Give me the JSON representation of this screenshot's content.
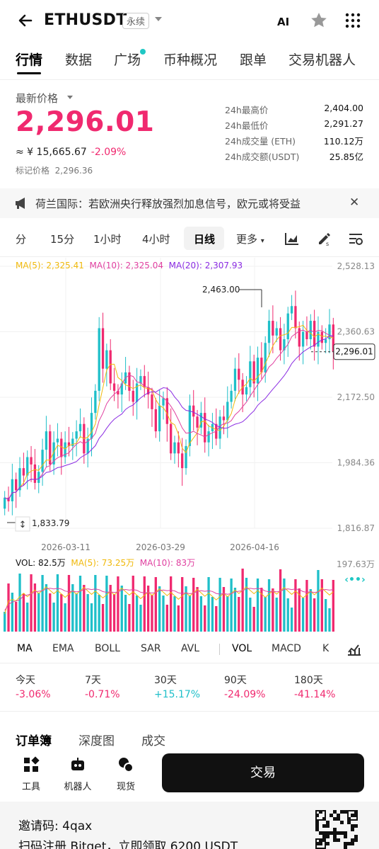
{
  "header": {
    "symbol": "ETHUSDT",
    "contract_type": "永续",
    "ai_label": "AI"
  },
  "tabs": [
    {
      "label": "行情",
      "active": true
    },
    {
      "label": "数据"
    },
    {
      "label": "广场",
      "dot": true
    },
    {
      "label": "币种概况"
    },
    {
      "label": "跟单"
    },
    {
      "label": "交易机器人"
    }
  ],
  "price": {
    "label": "最新价格",
    "last": "2,296.01",
    "cny": "≈ ¥ 15,665.67",
    "change": "-2.09%",
    "mark_label": "标记价格",
    "mark_value": "2,296.36"
  },
  "stats": [
    {
      "label": "24h最高价",
      "value": "2,404.00"
    },
    {
      "label": "24h最低价",
      "value": "2,291.27"
    },
    {
      "label": "24h成交量 (ETH)",
      "value": "110.12万"
    },
    {
      "label": "24h成交额(USDT)",
      "value": "25.85亿"
    }
  ],
  "news": "荷兰国际：若欧洲央行释放强烈加息信号，欧元或将受益",
  "timeframes": [
    "分",
    "15分",
    "1小时",
    "4小时",
    "日线",
    "更多"
  ],
  "active_timeframe": "日线",
  "ma_legend": {
    "ma5": "MA(5): 2,325.41",
    "ma10": "MA(10): 2,325.04",
    "ma20": "MA(20): 2,307.93"
  },
  "chart_data": {
    "type": "candlestick",
    "y_ticks": [
      "2,528.13",
      "2,360.63",
      "2,172.50",
      "1,984.36",
      "1,816.87"
    ],
    "x_ticks": [
      "2026-03-11",
      "2026-03-29",
      "2026-04-16"
    ],
    "high_label": "2,463.00",
    "low_label": "1,833.79",
    "last_label": "2,296.01",
    "ylim": [
      1816.87,
      2528.13
    ]
  },
  "volume": {
    "vol": "VOL: 82.5万",
    "ma5": "MA(5): 73.25万",
    "ma10": "MA(10): 83万",
    "max_label": "197.63万"
  },
  "indicators": [
    "MA",
    "EMA",
    "BOLL",
    "SAR",
    "AVL",
    "VOL",
    "MACD",
    "K"
  ],
  "performance": [
    {
      "period": "今天",
      "change": "-3.06%",
      "dir": "down"
    },
    {
      "period": "7天",
      "change": "-0.71%",
      "dir": "down"
    },
    {
      "period": "30天",
      "change": "+15.17%",
      "dir": "up"
    },
    {
      "period": "90天",
      "change": "-24.09%",
      "dir": "down"
    },
    {
      "period": "180天",
      "change": "-41.14%",
      "dir": "down"
    }
  ],
  "book_tabs": [
    {
      "label": "订单簿",
      "active": true
    },
    {
      "label": "深度图"
    },
    {
      "label": "成交"
    }
  ],
  "tools": [
    {
      "label": "工具"
    },
    {
      "label": "机器人"
    },
    {
      "label": "现货"
    }
  ],
  "trade_button": "交易",
  "footer": {
    "invite": "邀请码: 4qax",
    "scan": "扫码注册 Bitget，立即领取 6200 USDT"
  },
  "colors": {
    "up": "#1fbfc9",
    "down": "#f0296f",
    "ma5": "#f0b90b",
    "ma10": "#e040a0",
    "ma20": "#8a2be2"
  }
}
